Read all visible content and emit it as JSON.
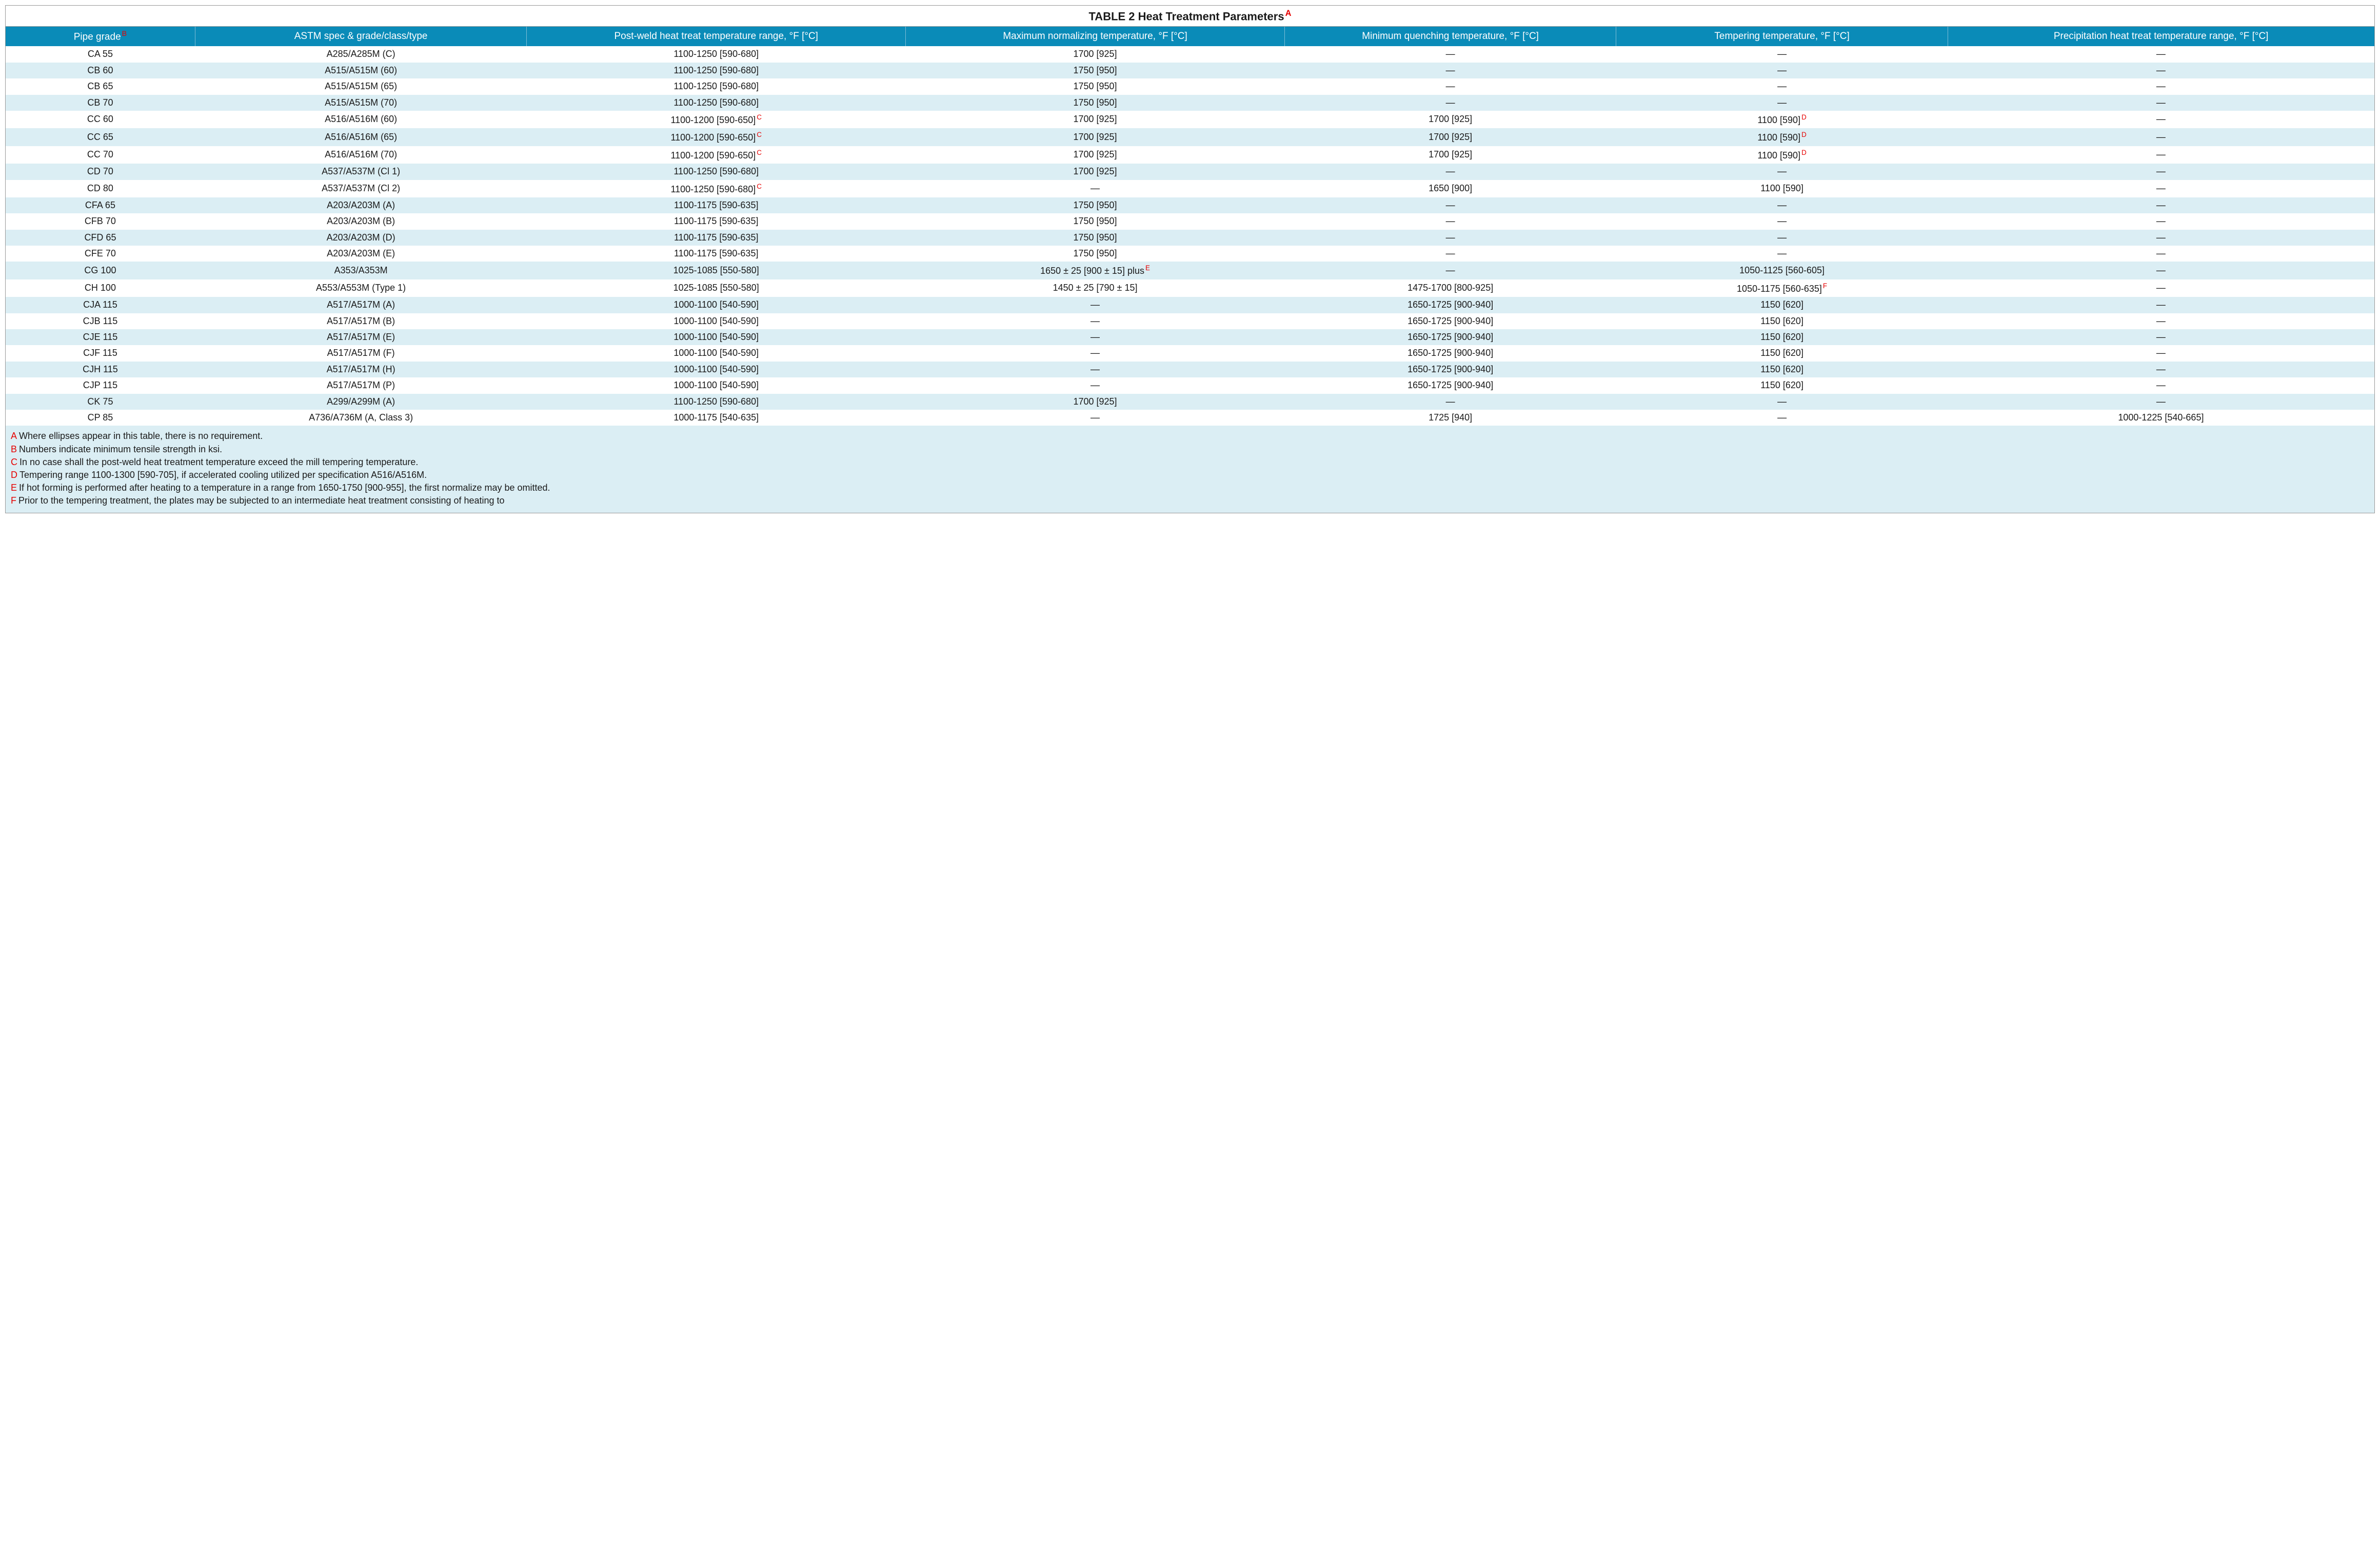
{
  "title": "TABLE 2 Heat Treatment Parameters",
  "title_sup": "A",
  "colors": {
    "header_bg": "#0a8bb8",
    "header_fg": "#ffffff",
    "row_alt_bg": "#dbeef4",
    "row_bg": "#ffffff",
    "sup_color": "#e60000",
    "border": "#999999"
  },
  "fonts": {
    "family": "Segoe UI, Arial, sans-serif",
    "title_size_pt": 16,
    "header_size_pt": 14,
    "cell_size_pt": 13,
    "footnote_size_pt": 13
  },
  "columns": [
    {
      "label": "Pipe grade",
      "sup": "B"
    },
    {
      "label": "ASTM spec & grade/class/type",
      "sup": ""
    },
    {
      "label": "Post-weld heat treat temperature range, °F [°C]",
      "sup": ""
    },
    {
      "label": "Maximum normalizing temperature, °F [°C]",
      "sup": ""
    },
    {
      "label": "Minimum quenching temperature, °F [°C]",
      "sup": ""
    },
    {
      "label": "Tempering temperature, °F [°C]",
      "sup": ""
    },
    {
      "label": "Precipitation heat treat temperature range, °F [°C]",
      "sup": ""
    }
  ],
  "rows": [
    {
      "c": [
        "CA 55",
        "A285/A285M (C)",
        "1100-1250 [590-680]",
        "1700 [925]",
        "—",
        "—",
        "—"
      ],
      "s": [
        "",
        "",
        "",
        "",
        "",
        "",
        ""
      ]
    },
    {
      "c": [
        "CB 60",
        "A515/A515M (60)",
        "1100-1250 [590-680]",
        "1750 [950]",
        "—",
        "—",
        "—"
      ],
      "s": [
        "",
        "",
        "",
        "",
        "",
        "",
        ""
      ]
    },
    {
      "c": [
        "CB 65",
        "A515/A515M (65)",
        "1100-1250 [590-680]",
        "1750 [950]",
        "—",
        "—",
        "—"
      ],
      "s": [
        "",
        "",
        "",
        "",
        "",
        "",
        ""
      ]
    },
    {
      "c": [
        "CB 70",
        "A515/A515M (70)",
        "1100-1250 [590-680]",
        "1750 [950]",
        "—",
        "—",
        "—"
      ],
      "s": [
        "",
        "",
        "",
        "",
        "",
        "",
        ""
      ]
    },
    {
      "c": [
        "CC 60",
        "A516/A516M (60)",
        "1100-1200 [590-650]",
        "1700 [925]",
        "1700 [925]",
        "1100 [590]",
        "—"
      ],
      "s": [
        "",
        "",
        "C",
        "",
        "",
        "D",
        ""
      ]
    },
    {
      "c": [
        "CC 65",
        "A516/A516M (65)",
        "1100-1200 [590-650]",
        "1700 [925]",
        "1700 [925]",
        "1100 [590]",
        "—"
      ],
      "s": [
        "",
        "",
        "C",
        "",
        "",
        "D",
        ""
      ]
    },
    {
      "c": [
        "CC 70",
        "A516/A516M (70)",
        "1100-1200 [590-650]",
        "1700 [925]",
        "1700 [925]",
        "1100 [590]",
        "—"
      ],
      "s": [
        "",
        "",
        "C",
        "",
        "",
        "D",
        ""
      ]
    },
    {
      "c": [
        "CD 70",
        "A537/A537M (Cl 1)",
        "1100-1250 [590-680]",
        "1700 [925]",
        "—",
        "—",
        "—"
      ],
      "s": [
        "",
        "",
        "",
        "",
        "",
        "",
        ""
      ]
    },
    {
      "c": [
        "CD 80",
        "A537/A537M (Cl 2)",
        "1100-1250 [590-680]",
        "—",
        "1650 [900]",
        "1100 [590]",
        "—"
      ],
      "s": [
        "",
        "",
        "C",
        "",
        "",
        "",
        ""
      ]
    },
    {
      "c": [
        "CFA 65",
        "A203/A203M (A)",
        "1100-1175 [590-635]",
        "1750 [950]",
        "—",
        "—",
        "—"
      ],
      "s": [
        "",
        "",
        "",
        "",
        "",
        "",
        ""
      ]
    },
    {
      "c": [
        "CFB 70",
        "A203/A203M (B)",
        "1100-1175 [590-635]",
        "1750 [950]",
        "—",
        "—",
        "—"
      ],
      "s": [
        "",
        "",
        "",
        "",
        "",
        "",
        ""
      ]
    },
    {
      "c": [
        "CFD 65",
        "A203/A203M (D)",
        "1100-1175 [590-635]",
        "1750 [950]",
        "—",
        "—",
        "—"
      ],
      "s": [
        "",
        "",
        "",
        "",
        "",
        "",
        ""
      ]
    },
    {
      "c": [
        "CFE 70",
        "A203/A203M (E)",
        "1100-1175 [590-635]",
        "1750 [950]",
        "—",
        "—",
        "—"
      ],
      "s": [
        "",
        "",
        "",
        "",
        "",
        "",
        ""
      ]
    },
    {
      "c": [
        "CG 100",
        "A353/A353M",
        "1025-1085 [550-580]",
        "1650 ± 25 [900 ± 15] plus",
        "—",
        "1050-1125 [560-605]",
        "—"
      ],
      "s": [
        "",
        "",
        "",
        "E",
        "",
        "",
        ""
      ]
    },
    {
      "c": [
        "CH 100",
        "A553/A553M (Type 1)",
        "1025-1085 [550-580]",
        "1450 ± 25 [790 ± 15]",
        "1475-1700 [800-925]",
        "1050-1175 [560-635]",
        "—"
      ],
      "s": [
        "",
        "",
        "",
        "",
        "",
        "F",
        ""
      ]
    },
    {
      "c": [
        "CJA 115",
        "A517/A517M (A)",
        "1000-1100 [540-590]",
        "—",
        "1650-1725 [900-940]",
        "1150 [620]",
        "—"
      ],
      "s": [
        "",
        "",
        "",
        "",
        "",
        "",
        ""
      ]
    },
    {
      "c": [
        "CJB 115",
        "A517/A517M (B)",
        "1000-1100 [540-590]",
        "—",
        "1650-1725 [900-940]",
        "1150 [620]",
        "—"
      ],
      "s": [
        "",
        "",
        "",
        "",
        "",
        "",
        ""
      ]
    },
    {
      "c": [
        "CJE 115",
        "A517/A517M (E)",
        "1000-1100 [540-590]",
        "—",
        "1650-1725 [900-940]",
        "1150 [620]",
        "—"
      ],
      "s": [
        "",
        "",
        "",
        "",
        "",
        "",
        ""
      ]
    },
    {
      "c": [
        "CJF 115",
        "A517/A517M (F)",
        "1000-1100 [540-590]",
        "—",
        "1650-1725 [900-940]",
        "1150 [620]",
        "—"
      ],
      "s": [
        "",
        "",
        "",
        "",
        "",
        "",
        ""
      ]
    },
    {
      "c": [
        "CJH 115",
        "A517/A517M (H)",
        "1000-1100 [540-590]",
        "—",
        "1650-1725 [900-940]",
        "1150 [620]",
        "—"
      ],
      "s": [
        "",
        "",
        "",
        "",
        "",
        "",
        ""
      ]
    },
    {
      "c": [
        "CJP 115",
        "A517/A517M (P)",
        "1000-1100 [540-590]",
        "—",
        "1650-1725 [900-940]",
        "1150 [620]",
        "—"
      ],
      "s": [
        "",
        "",
        "",
        "",
        "",
        "",
        ""
      ]
    },
    {
      "c": [
        "CK 75",
        "A299/A299M (A)",
        "1100-1250 [590-680]",
        "1700 [925]",
        "—",
        "—",
        "—"
      ],
      "s": [
        "",
        "",
        "",
        "",
        "",
        "",
        ""
      ]
    },
    {
      "c": [
        "CP 85",
        "A736/A736M (A, Class 3)",
        "1000-1175 [540-635]",
        "—",
        "1725 [940]",
        "—",
        "1000-1225 [540-665]"
      ],
      "s": [
        "",
        "",
        "",
        "",
        "",
        "",
        ""
      ]
    }
  ],
  "footnotes": [
    {
      "letter": "A",
      "text": "Where ellipses appear in this table, there is no requirement."
    },
    {
      "letter": "B",
      "text": "Numbers indicate minimum tensile strength in ksi."
    },
    {
      "letter": "C",
      "text": "In no case shall the post-weld heat treatment temperature exceed the mill tempering temperature."
    },
    {
      "letter": "D",
      "text": "Tempering range 1100-1300 [590-705], if accelerated cooling utilized per specification A516/A516M."
    },
    {
      "letter": "E",
      "text": "If hot forming is performed after heating to a temperature in a range from 1650-1750 [900-955], the first normalize may be omitted."
    },
    {
      "letter": "F",
      "text": "Prior to the tempering treatment, the plates may be subjected to an intermediate heat treatment consisting of heating to"
    }
  ]
}
